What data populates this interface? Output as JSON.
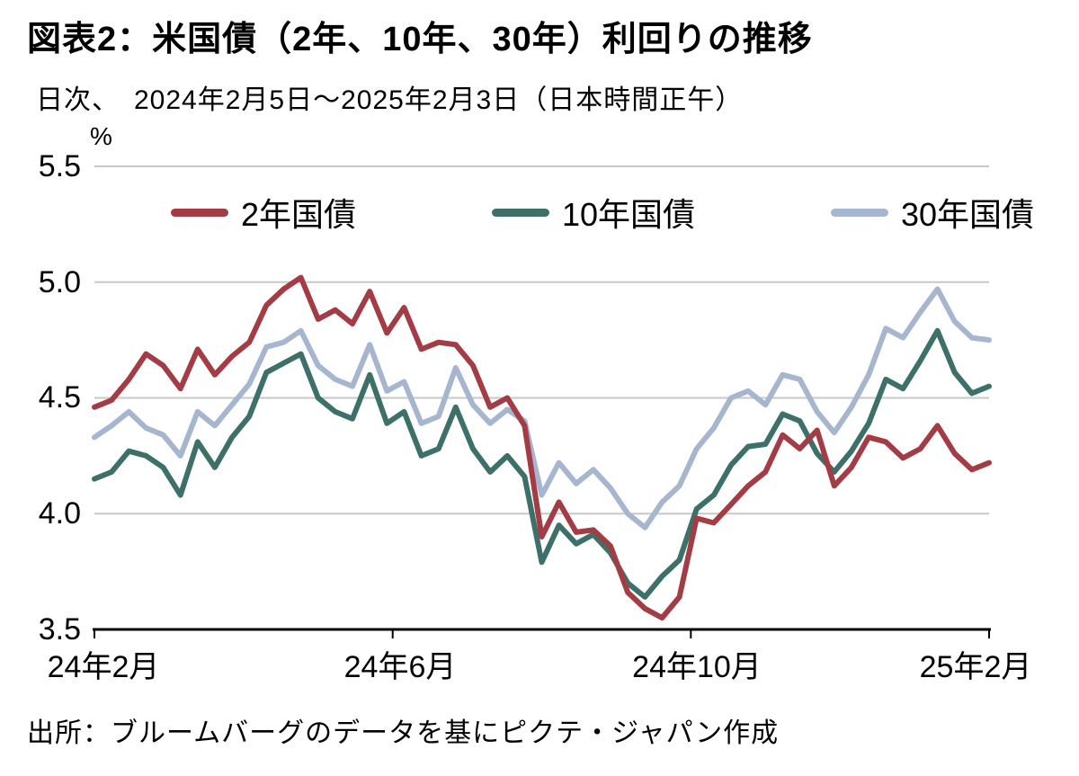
{
  "header": {
    "title": "図表2：米国債（2年、10年、30年）利回りの推移",
    "subtitle": "日次、　2024年2月5日～2025年2月3日（日本時間正午）"
  },
  "footer": {
    "source": "出所：ブルームバーグのデータを基にピクテ・ジャパン作成"
  },
  "chart_data": {
    "type": "line",
    "title": "米国債（2年、10年、30年）利回りの推移",
    "ylabel": "%",
    "ylim": [
      3.5,
      5.5
    ],
    "yticks": [
      "5.5",
      "5.0",
      "4.5",
      "4.0",
      "3.5"
    ],
    "xticks": [
      "24年2月",
      "24年6月",
      "24年10月",
      "25年2月"
    ],
    "x_range": "2024年2月5日～2025年2月3日",
    "grid": "horizontal",
    "legend_position": "top",
    "series": [
      {
        "name": "2年国債",
        "color": "#A33C44",
        "values": [
          4.46,
          4.49,
          4.58,
          4.69,
          4.64,
          4.54,
          4.71,
          4.6,
          4.68,
          4.74,
          4.9,
          4.97,
          5.02,
          4.84,
          4.88,
          4.82,
          4.96,
          4.78,
          4.89,
          4.71,
          4.74,
          4.73,
          4.64,
          4.46,
          4.5,
          4.38,
          3.9,
          4.05,
          3.92,
          3.93,
          3.86,
          3.66,
          3.59,
          3.55,
          3.64,
          3.98,
          3.96,
          4.04,
          4.12,
          4.18,
          4.34,
          4.28,
          4.36,
          4.12,
          4.2,
          4.33,
          4.31,
          4.24,
          4.28,
          4.38,
          4.26,
          4.19,
          4.22
        ]
      },
      {
        "name": "10年国債",
        "color": "#3D7068",
        "values": [
          4.15,
          4.18,
          4.27,
          4.25,
          4.2,
          4.08,
          4.31,
          4.2,
          4.33,
          4.42,
          4.61,
          4.65,
          4.69,
          4.5,
          4.44,
          4.41,
          4.6,
          4.39,
          4.44,
          4.25,
          4.28,
          4.46,
          4.28,
          4.18,
          4.25,
          4.16,
          3.79,
          3.95,
          3.87,
          3.91,
          3.83,
          3.7,
          3.64,
          3.73,
          3.8,
          4.02,
          4.08,
          4.21,
          4.29,
          4.3,
          4.43,
          4.4,
          4.26,
          4.18,
          4.27,
          4.39,
          4.58,
          4.54,
          4.66,
          4.79,
          4.61,
          4.52,
          4.55
        ]
      },
      {
        "name": "30年国債",
        "color": "#A6B6CE",
        "values": [
          4.33,
          4.38,
          4.44,
          4.37,
          4.34,
          4.25,
          4.44,
          4.38,
          4.47,
          4.56,
          4.72,
          4.74,
          4.79,
          4.64,
          4.58,
          4.55,
          4.73,
          4.53,
          4.57,
          4.39,
          4.42,
          4.63,
          4.47,
          4.39,
          4.45,
          4.4,
          4.08,
          4.22,
          4.13,
          4.19,
          4.11,
          4.0,
          3.94,
          4.05,
          4.12,
          4.28,
          4.37,
          4.5,
          4.53,
          4.47,
          4.6,
          4.58,
          4.44,
          4.35,
          4.46,
          4.6,
          4.8,
          4.76,
          4.87,
          4.97,
          4.83,
          4.76,
          4.75
        ]
      }
    ]
  }
}
